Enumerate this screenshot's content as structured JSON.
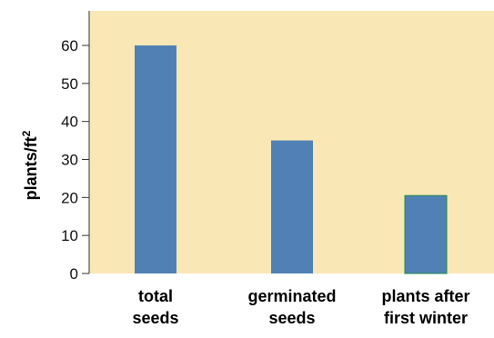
{
  "chart_data": {
    "type": "bar",
    "title": "",
    "xlabel": "",
    "ylabel": "plants/ft",
    "ylabel_superscript": "2",
    "categories": [
      [
        "total",
        "seeds"
      ],
      [
        "germinated",
        "seeds"
      ],
      [
        "plants after",
        "first winter"
      ]
    ],
    "values": [
      60,
      35,
      20.5
    ],
    "ylim": [
      0,
      65
    ],
    "yticks": [
      0,
      10,
      20,
      30,
      40,
      50,
      60
    ],
    "grid": false,
    "legend": "none",
    "colors": {
      "plot_background": "#f9e7b5",
      "bar_fill": "#5181b4",
      "bar_edge_highlight": "#1e8a50",
      "axis": "#333333"
    }
  }
}
